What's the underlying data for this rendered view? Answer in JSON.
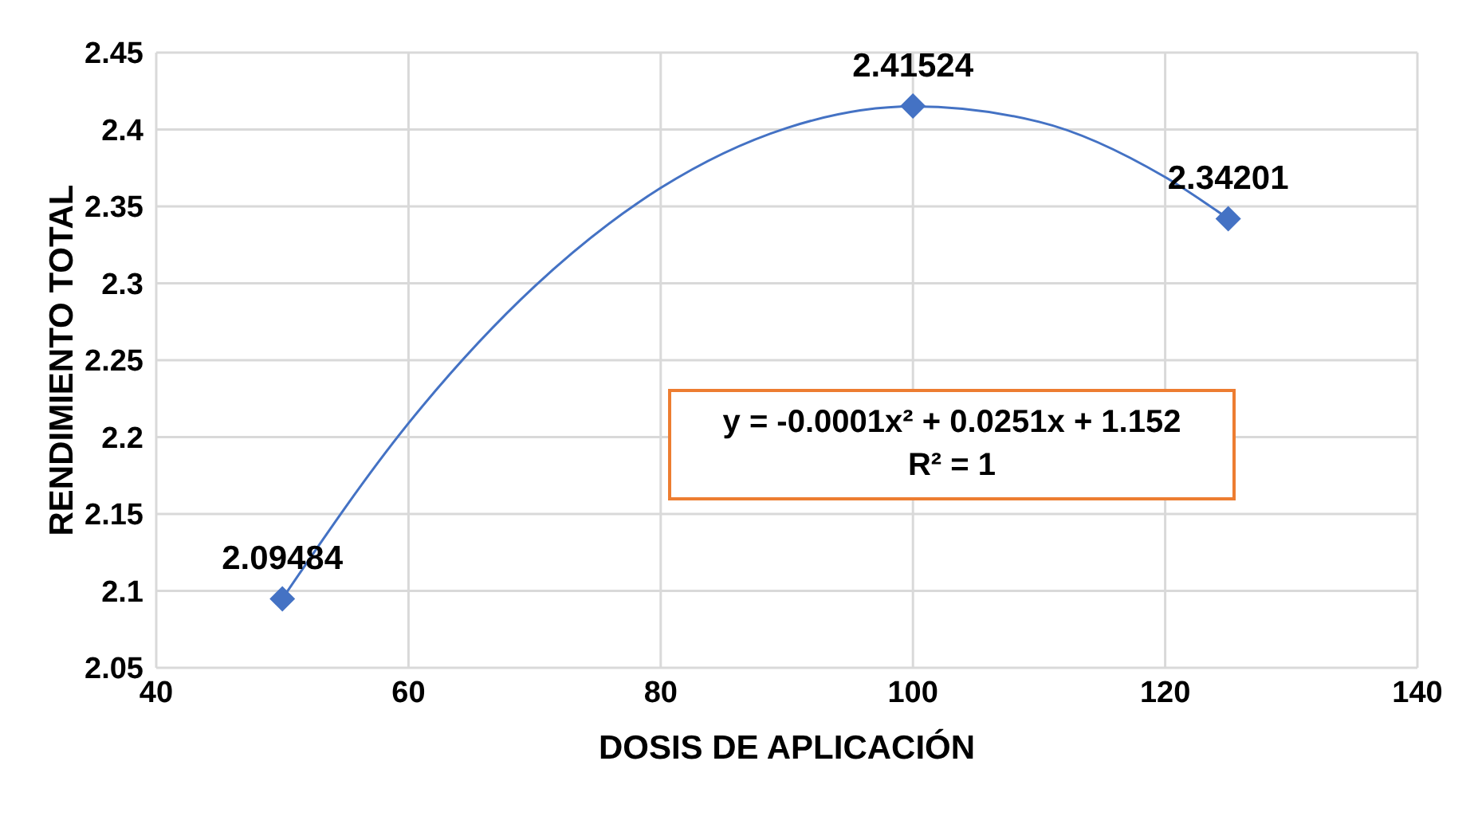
{
  "chart_data": {
    "type": "scatter",
    "xlabel": "DOSIS DE APLICACIÓN",
    "ylabel": "RENDIMIENTO TOTAL",
    "series": [
      {
        "color": "#4472c4",
        "x": [
          50,
          100,
          125
        ],
        "values": [
          2.09484,
          2.41524,
          2.34201
        ],
        "marker": "diamond",
        "data_labels": true
      },
      {
        "type": "line",
        "color": "#4472c4",
        "x": [
          50,
          60,
          70,
          80,
          90,
          100,
          110,
          120,
          125
        ],
        "values": [
          2.095,
          2.209,
          2.298,
          2.362,
          2.401,
          2.415,
          2.405,
          2.369,
          2.342
        ],
        "marker": "none"
      }
    ],
    "xlim": [
      40,
      140
    ],
    "xticks": [
      40,
      60,
      80,
      100,
      120,
      140
    ],
    "ylim": [
      2.05,
      2.45
    ],
    "yticks": [
      2.05,
      2.1,
      2.15,
      2.2,
      2.25,
      2.3,
      2.35,
      2.4,
      2.45
    ],
    "grid": true,
    "legend": false,
    "annotations": [
      "y = -0.0001x² + 0.0251x + 1.152",
      "R² = 1"
    ]
  }
}
